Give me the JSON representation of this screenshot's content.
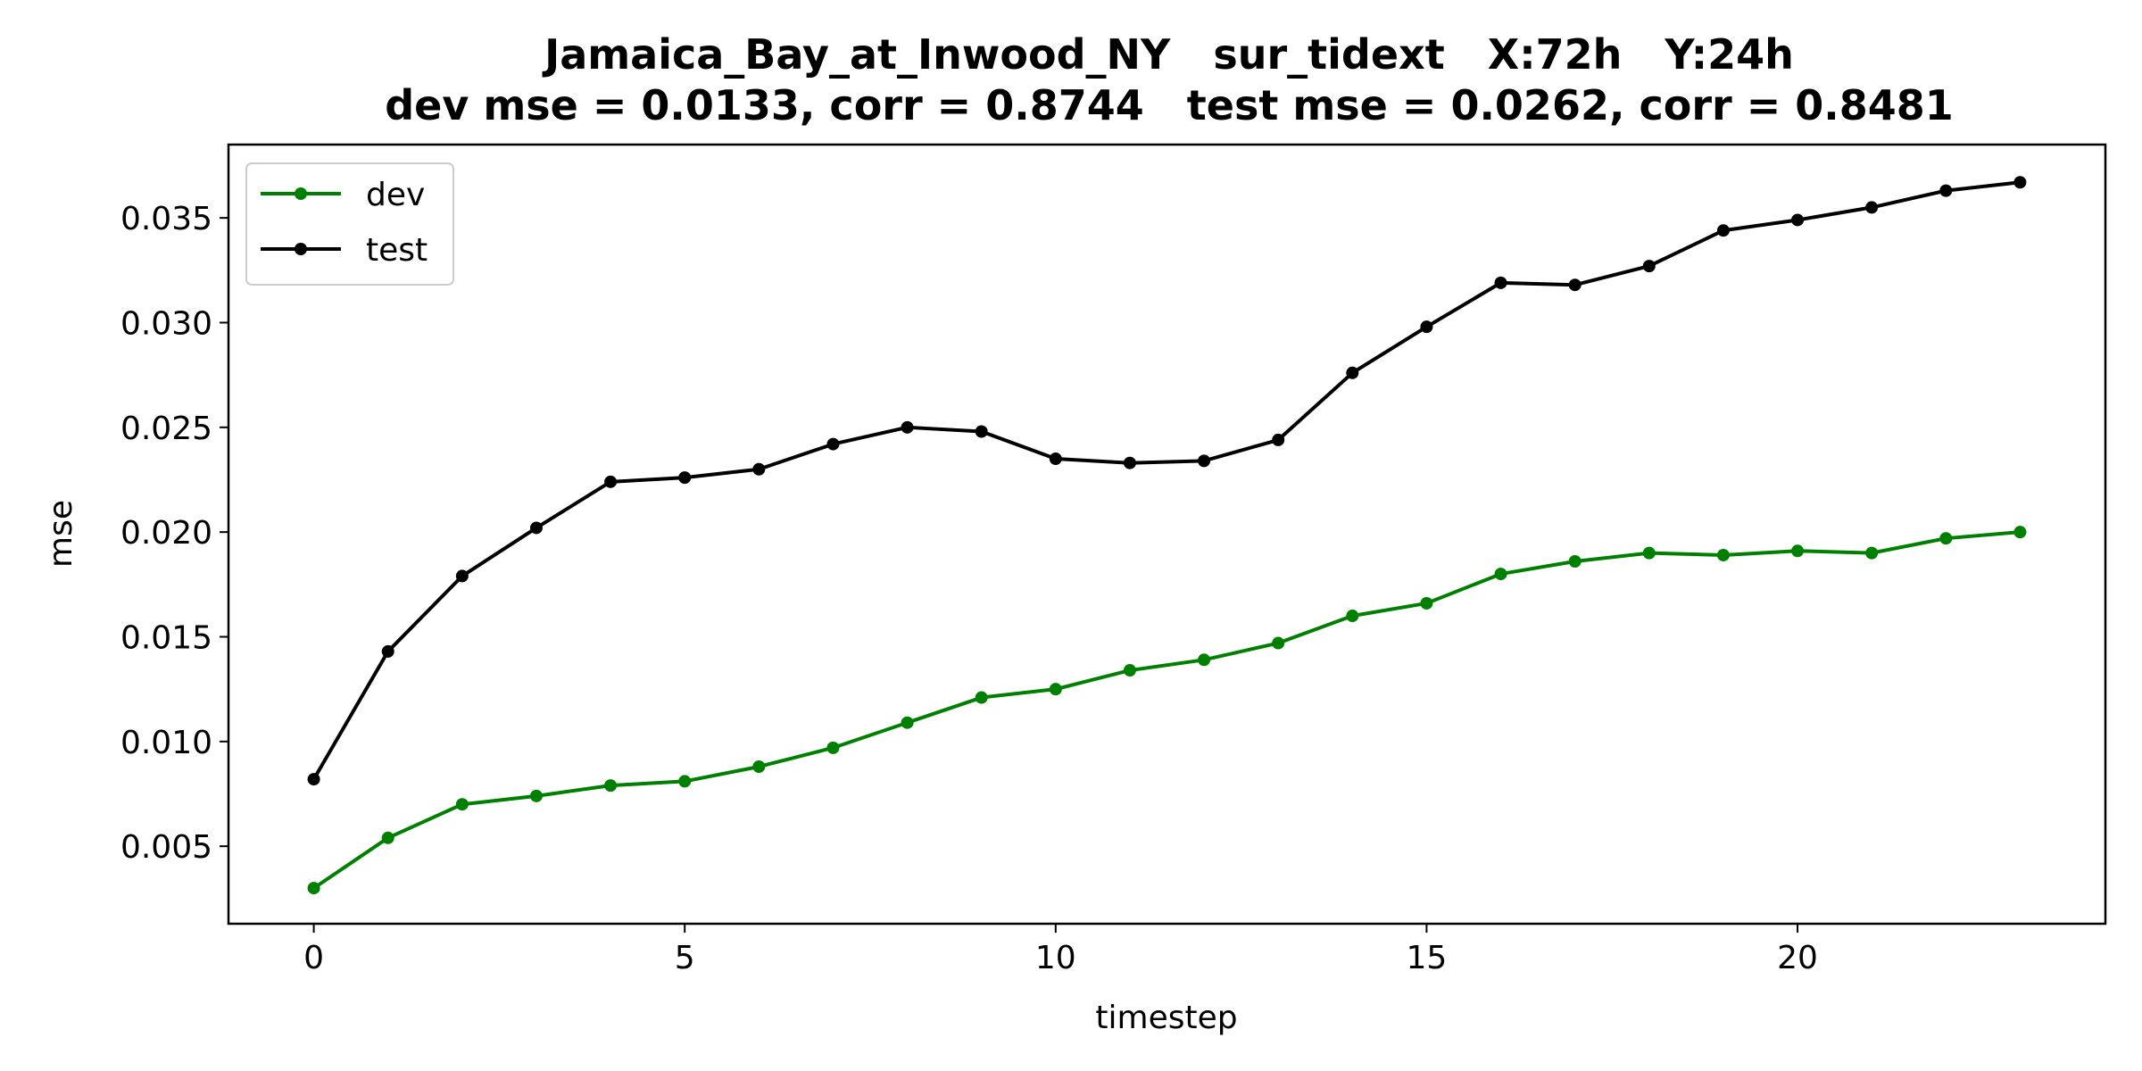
{
  "chart_data": {
    "type": "line",
    "title_line1": "Jamaica_Bay_at_Inwood_NY   sur_tidext   X:72h   Y:24h",
    "title_line2": "dev mse = 0.0133, corr = 0.8744   test mse = 0.0262, corr = 0.8481",
    "xlabel": "timestep",
    "ylabel": "mse",
    "xlim": [
      -1.15,
      24.15
    ],
    "ylim": [
      0.0013,
      0.0385
    ],
    "xticks": [
      0,
      5,
      10,
      15,
      20
    ],
    "yticks": [
      0.005,
      0.01,
      0.015,
      0.02,
      0.025,
      0.03,
      0.035
    ],
    "ytick_labels": [
      "0.005",
      "0.010",
      "0.015",
      "0.020",
      "0.025",
      "0.030",
      "0.035"
    ],
    "grid": false,
    "legend_position": "top-left",
    "x": [
      0,
      1,
      2,
      3,
      4,
      5,
      6,
      7,
      8,
      9,
      10,
      11,
      12,
      13,
      14,
      15,
      16,
      17,
      18,
      19,
      20,
      21,
      22,
      23
    ],
    "series": [
      {
        "name": "dev",
        "color": "#008000",
        "values": [
          0.003,
          0.0054,
          0.007,
          0.0074,
          0.0079,
          0.0081,
          0.0088,
          0.0097,
          0.0109,
          0.0121,
          0.0125,
          0.0134,
          0.0139,
          0.0147,
          0.016,
          0.0166,
          0.018,
          0.0186,
          0.019,
          0.0189,
          0.0191,
          0.019,
          0.0197,
          0.02
        ]
      },
      {
        "name": "test",
        "color": "#000000",
        "values": [
          0.0082,
          0.0143,
          0.0179,
          0.0202,
          0.0224,
          0.0226,
          0.023,
          0.0242,
          0.025,
          0.0248,
          0.0235,
          0.0233,
          0.0234,
          0.0244,
          0.0276,
          0.0298,
          0.0319,
          0.0318,
          0.0327,
          0.0344,
          0.0349,
          0.0355,
          0.0363,
          0.0367
        ]
      }
    ]
  }
}
